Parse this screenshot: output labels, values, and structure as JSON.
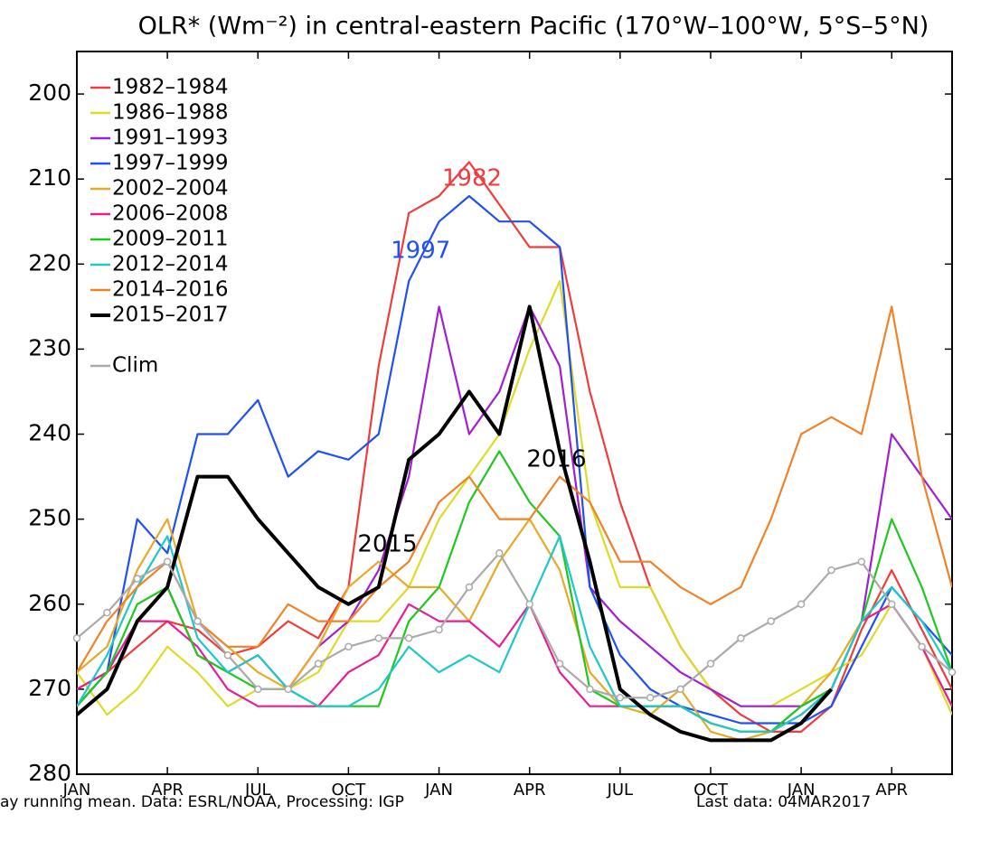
{
  "chart_data": {
    "type": "line",
    "title": "OLR* (Wm⁻²) in central-eastern Pacific (170°W–100°W, 5°S–5°N)",
    "footnote_left": "ay running mean. Data: ESRL/NOAA, Processing: IGP",
    "footnote_right": "Last data: 04MAR2017",
    "x": [
      0,
      1,
      2,
      3,
      4,
      5,
      6,
      7,
      8,
      9,
      10,
      11,
      12,
      13,
      14,
      15,
      16,
      17,
      18,
      19,
      20,
      21,
      22,
      23,
      24,
      25,
      26,
      27,
      28,
      29
    ],
    "xlim": [
      0,
      29
    ],
    "xticks": [
      {
        "value": 0,
        "label": "JAN"
      },
      {
        "value": 3,
        "label": "APR"
      },
      {
        "value": 6,
        "label": "JUL"
      },
      {
        "value": 9,
        "label": "OCT"
      },
      {
        "value": 12,
        "label": "JAN"
      },
      {
        "value": 15,
        "label": "APR"
      },
      {
        "value": 18,
        "label": "JUL"
      },
      {
        "value": 21,
        "label": "OCT"
      },
      {
        "value": 24,
        "label": "JAN"
      },
      {
        "value": 27,
        "label": "APR"
      }
    ],
    "ylim": [
      195,
      280
    ],
    "yticks": [
      200,
      210,
      220,
      230,
      240,
      250,
      260,
      270,
      280
    ],
    "y_inverted": true,
    "legend": "upper left",
    "series": [
      {
        "name": "1982–1984",
        "color": "#f03c3c",
        "values": [
          270,
          268,
          265,
          262,
          263,
          266,
          265,
          262,
          264,
          258,
          232,
          214,
          212,
          208,
          213,
          218,
          218,
          235,
          248,
          258,
          265,
          270,
          273,
          275,
          275,
          272,
          263,
          256,
          263,
          270
        ]
      },
      {
        "name": "1986–1988",
        "color": "#dcdc28",
        "values": [
          268,
          273,
          270,
          265,
          268,
          272,
          270,
          270,
          268,
          262,
          262,
          258,
          250,
          245,
          240,
          230,
          222,
          248,
          258,
          258,
          265,
          270,
          272,
          272,
          270,
          268,
          266,
          260,
          265,
          273
        ]
      },
      {
        "name": "1991–1993",
        "color": "#a020d0",
        "values": [
          272,
          268,
          262,
          258,
          266,
          268,
          266,
          270,
          265,
          262,
          256,
          245,
          225,
          240,
          235,
          225,
          232,
          258,
          262,
          265,
          268,
          270,
          272,
          272,
          272,
          270,
          262,
          240,
          245,
          250
        ]
      },
      {
        "name": "1997–1999",
        "color": "#2050f0",
        "values": [
          272,
          268,
          250,
          254,
          240,
          240,
          236,
          245,
          242,
          243,
          240,
          222,
          215,
          212,
          215,
          215,
          218,
          258,
          266,
          270,
          272,
          273,
          274,
          274,
          274,
          272,
          265,
          258,
          262,
          266
        ]
      },
      {
        "name": "2002–2004",
        "color": "#e6aa28",
        "values": [
          268,
          265,
          256,
          250,
          262,
          265,
          268,
          270,
          265,
          258,
          255,
          258,
          258,
          262,
          255,
          250,
          256,
          268,
          272,
          273,
          270,
          275,
          276,
          275,
          272,
          268,
          262,
          260,
          265,
          272
        ]
      },
      {
        "name": "2006–2008",
        "color": "#e61e96",
        "values": [
          270,
          268,
          262,
          262,
          265,
          270,
          272,
          272,
          272,
          268,
          266,
          260,
          262,
          262,
          265,
          260,
          268,
          272,
          272,
          272,
          272,
          274,
          275,
          275,
          273,
          270,
          262,
          260,
          265,
          272
        ]
      },
      {
        "name": "2009–2011",
        "color": "#1ec81e",
        "values": [
          272,
          268,
          260,
          258,
          266,
          268,
          270,
          270,
          272,
          272,
          272,
          262,
          258,
          248,
          242,
          248,
          252,
          270,
          272,
          272,
          272,
          274,
          275,
          275,
          272,
          270,
          262,
          250,
          258,
          268
        ]
      },
      {
        "name": "2012–2014",
        "color": "#1ec8c8",
        "values": [
          272,
          266,
          258,
          252,
          264,
          268,
          266,
          270,
          272,
          272,
          270,
          265,
          268,
          266,
          268,
          260,
          252,
          265,
          272,
          272,
          272,
          274,
          275,
          275,
          273,
          270,
          262,
          258,
          262,
          268
        ]
      },
      {
        "name": "2014–2016",
        "color": "#f08228",
        "values": [
          268,
          262,
          258,
          255,
          262,
          265,
          265,
          260,
          262,
          262,
          258,
          255,
          248,
          245,
          250,
          250,
          245,
          248,
          255,
          255,
          258,
          260,
          258,
          250,
          240,
          238,
          240,
          225,
          245,
          258
        ]
      },
      {
        "name": "2015–2017",
        "color": "#000000",
        "values": [
          273,
          270,
          262,
          258,
          245,
          245,
          250,
          254,
          258,
          260,
          258,
          243,
          240,
          235,
          240,
          225,
          242,
          255,
          270,
          273,
          275,
          276,
          276,
          276,
          274,
          270,
          null,
          null,
          null,
          null
        ]
      },
      {
        "name": "Clim",
        "color": "#aaaaaa",
        "values": [
          264,
          261,
          257,
          255,
          262,
          266,
          270,
          270,
          267,
          265,
          264,
          264,
          263,
          258,
          254,
          260,
          267,
          270,
          271,
          271,
          270,
          267,
          264,
          262,
          260,
          256,
          255,
          260,
          265,
          268
        ]
      }
    ],
    "annotations": [
      {
        "text": "1982",
        "x": 12.1,
        "y": 210,
        "color": "#f03c3c"
      },
      {
        "text": "1997",
        "x": 10.4,
        "y": 218.5,
        "color": "#2050f0"
      },
      {
        "text": "2015",
        "x": 9.3,
        "y": 253,
        "color": "#000000"
      },
      {
        "text": "2016",
        "x": 14.9,
        "y": 243,
        "color": "#000000"
      }
    ]
  }
}
